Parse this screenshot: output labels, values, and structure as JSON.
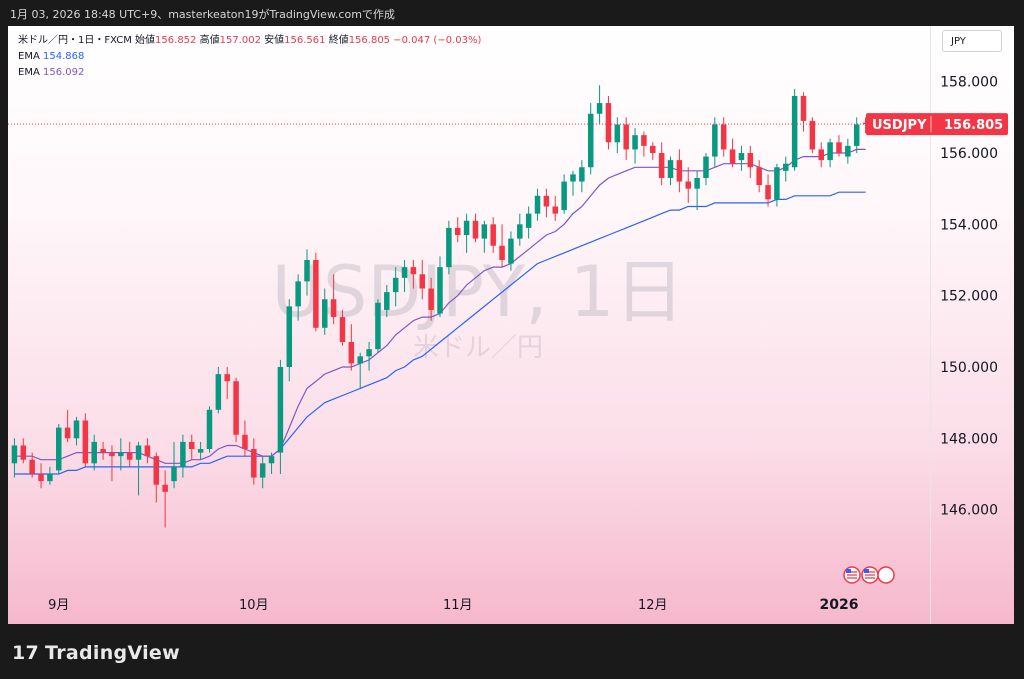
{
  "header": {
    "timestamp": "1月 03, 2026 18:48 UTC+9、masterkeaton19がTradingView.comで作成"
  },
  "legend": {
    "symbol_line": "米ドル／円・1日・FXCM",
    "open_label": "始値",
    "open": "156.852",
    "high_label": "高値",
    "high": "157.002",
    "low_label": "安値",
    "low": "156.561",
    "close_label": "終値",
    "close": "156.805",
    "change": "−0.047 (−0.03%)",
    "ema1_label": "EMA",
    "ema1_value": "154.868",
    "ema2_label": "EMA",
    "ema2_value": "156.092"
  },
  "currency_selector": "JPY",
  "watermark": {
    "main": "USDJPY, 1日",
    "sub": "米ドル／円"
  },
  "price_tag": {
    "symbol": "USDJPY",
    "value": "156.805"
  },
  "brand": "TradingView",
  "colors": {
    "up": "#089981",
    "down": "#f23645",
    "ema_fast": "#7e57c2",
    "ema_slow": "#2962ff",
    "tag": "#f23645"
  },
  "chart_data": {
    "type": "candlestick",
    "symbol": "USDJPY",
    "ylim": [
      144.0,
      159.0
    ],
    "y_ticks": [
      "158.000",
      "156.000",
      "154.000",
      "152.000",
      "150.000",
      "148.000",
      "146.000"
    ],
    "x_ticks": [
      {
        "label": "9月",
        "index": 5
      },
      {
        "label": "10月",
        "index": 27
      },
      {
        "label": "11月",
        "index": 50
      },
      {
        "label": "12月",
        "index": 72
      },
      {
        "label": "2026",
        "index": 93
      }
    ],
    "candles": [
      [
        147.3,
        148.0,
        146.9,
        147.8
      ],
      [
        147.8,
        148.0,
        147.3,
        147.4
      ],
      [
        147.4,
        147.6,
        146.9,
        147.0
      ],
      [
        147.0,
        147.3,
        146.6,
        146.8
      ],
      [
        146.8,
        147.2,
        146.7,
        147.0
      ],
      [
        147.1,
        148.4,
        147.0,
        148.3
      ],
      [
        148.3,
        148.8,
        147.9,
        148.0
      ],
      [
        148.0,
        148.6,
        147.8,
        148.5
      ],
      [
        148.5,
        148.7,
        147.2,
        147.3
      ],
      [
        147.3,
        148.1,
        147.1,
        147.9
      ],
      [
        147.7,
        147.9,
        147.4,
        147.6
      ],
      [
        147.6,
        147.8,
        146.8,
        147.5
      ],
      [
        147.5,
        148.0,
        147.1,
        147.6
      ],
      [
        147.6,
        147.9,
        147.2,
        147.4
      ],
      [
        147.4,
        147.9,
        146.4,
        147.8
      ],
      [
        147.8,
        148.0,
        147.3,
        147.5
      ],
      [
        147.5,
        147.6,
        146.2,
        146.7
      ],
      [
        146.7,
        147.1,
        145.5,
        146.5
      ],
      [
        146.8,
        147.9,
        146.6,
        147.2
      ],
      [
        147.2,
        148.1,
        146.9,
        147.9
      ],
      [
        147.9,
        148.1,
        147.4,
        147.7
      ],
      [
        147.6,
        147.9,
        147.4,
        147.7
      ],
      [
        147.7,
        148.9,
        147.6,
        148.8
      ],
      [
        148.8,
        150.0,
        148.7,
        149.8
      ],
      [
        149.8,
        150.0,
        149.1,
        149.6
      ],
      [
        149.6,
        149.7,
        147.9,
        148.1
      ],
      [
        148.1,
        148.5,
        147.5,
        147.7
      ],
      [
        147.7,
        148.0,
        146.7,
        146.9
      ],
      [
        146.9,
        147.5,
        146.6,
        147.3
      ],
      [
        147.3,
        147.6,
        147.0,
        147.5
      ],
      [
        147.6,
        150.2,
        147.0,
        150.0
      ],
      [
        150.0,
        151.9,
        149.6,
        151.7
      ],
      [
        151.7,
        152.6,
        151.3,
        152.4
      ],
      [
        152.4,
        153.3,
        152.0,
        153.0
      ],
      [
        153.0,
        153.2,
        151.0,
        151.1
      ],
      [
        151.1,
        152.2,
        150.9,
        151.9
      ],
      [
        151.9,
        152.6,
        151.2,
        151.4
      ],
      [
        151.4,
        151.6,
        150.6,
        150.7
      ],
      [
        150.7,
        151.2,
        149.9,
        150.1
      ],
      [
        150.1,
        150.4,
        149.4,
        150.3
      ],
      [
        150.3,
        150.7,
        149.9,
        150.5
      ],
      [
        150.5,
        151.9,
        150.4,
        151.8
      ],
      [
        151.6,
        152.3,
        151.4,
        152.1
      ],
      [
        152.1,
        152.8,
        151.7,
        152.5
      ],
      [
        152.5,
        153.0,
        152.1,
        152.8
      ],
      [
        152.8,
        153.0,
        152.2,
        152.6
      ],
      [
        152.6,
        153.0,
        151.9,
        152.2
      ],
      [
        152.2,
        152.5,
        151.3,
        151.6
      ],
      [
        151.5,
        153.1,
        151.4,
        152.8
      ],
      [
        152.8,
        154.1,
        152.6,
        153.9
      ],
      [
        153.9,
        154.2,
        153.5,
        153.7
      ],
      [
        153.7,
        154.3,
        153.2,
        154.1
      ],
      [
        154.1,
        154.3,
        153.5,
        153.6
      ],
      [
        153.6,
        154.1,
        153.2,
        154.0
      ],
      [
        154.0,
        154.2,
        153.2,
        153.4
      ],
      [
        153.4,
        154.0,
        152.8,
        153.0
      ],
      [
        152.9,
        153.8,
        152.7,
        153.6
      ],
      [
        153.6,
        154.3,
        153.4,
        154.0
      ],
      [
        153.9,
        154.5,
        153.6,
        154.3
      ],
      [
        154.3,
        155.0,
        154.1,
        154.8
      ],
      [
        154.8,
        155.0,
        154.2,
        154.5
      ],
      [
        154.5,
        154.8,
        154.1,
        154.3
      ],
      [
        154.4,
        155.4,
        154.3,
        155.2
      ],
      [
        155.2,
        155.5,
        154.8,
        155.4
      ],
      [
        155.2,
        155.8,
        154.9,
        155.6
      ],
      [
        155.6,
        157.4,
        155.4,
        157.1
      ],
      [
        157.1,
        157.9,
        156.8,
        157.4
      ],
      [
        157.4,
        157.6,
        156.1,
        156.3
      ],
      [
        156.3,
        157.0,
        156.0,
        156.8
      ],
      [
        156.8,
        157.0,
        155.8,
        156.1
      ],
      [
        156.1,
        156.7,
        155.7,
        156.5
      ],
      [
        156.5,
        156.6,
        155.9,
        156.2
      ],
      [
        156.2,
        156.3,
        155.8,
        156.0
      ],
      [
        156.0,
        156.3,
        155.1,
        155.3
      ],
      [
        155.3,
        155.9,
        155.1,
        155.8
      ],
      [
        155.8,
        156.1,
        154.9,
        155.2
      ],
      [
        155.2,
        155.6,
        154.6,
        155.0
      ],
      [
        155.0,
        155.5,
        154.4,
        155.3
      ],
      [
        155.3,
        156.0,
        155.1,
        155.9
      ],
      [
        155.9,
        157.0,
        155.6,
        156.8
      ],
      [
        156.8,
        157.0,
        155.9,
        156.1
      ],
      [
        156.1,
        156.4,
        155.6,
        155.7
      ],
      [
        155.8,
        156.2,
        155.5,
        156.0
      ],
      [
        156.0,
        156.2,
        155.3,
        155.6
      ],
      [
        155.6,
        155.8,
        154.9,
        155.1
      ],
      [
        155.1,
        155.4,
        154.5,
        154.7
      ],
      [
        154.7,
        155.7,
        154.5,
        155.6
      ],
      [
        155.5,
        155.9,
        155.2,
        155.7
      ],
      [
        155.6,
        157.8,
        155.5,
        157.6
      ],
      [
        157.6,
        157.7,
        156.6,
        156.9
      ],
      [
        156.9,
        157.0,
        156.0,
        156.1
      ],
      [
        156.1,
        156.3,
        155.6,
        155.8
      ],
      [
        155.8,
        156.4,
        155.6,
        156.3
      ],
      [
        156.3,
        156.5,
        155.9,
        156.0
      ],
      [
        155.9,
        156.4,
        155.7,
        156.2
      ],
      [
        156.2,
        157.0,
        156.0,
        156.8
      ],
      [
        156.85,
        157.0,
        156.56,
        156.81
      ]
    ],
    "ema_fast": [
      147.5,
      147.5,
      147.5,
      147.4,
      147.4,
      147.4,
      147.5,
      147.6,
      147.6,
      147.6,
      147.6,
      147.6,
      147.6,
      147.6,
      147.6,
      147.5,
      147.4,
      147.3,
      147.3,
      147.3,
      147.4,
      147.4,
      147.5,
      147.7,
      147.8,
      147.8,
      147.7,
      147.6,
      147.5,
      147.5,
      147.7,
      148.3,
      148.9,
      149.4,
      149.6,
      149.8,
      149.9,
      150.0,
      150.0,
      150.1,
      150.2,
      150.4,
      150.6,
      150.9,
      151.1,
      151.3,
      151.4,
      151.4,
      151.5,
      151.8,
      152.0,
      152.3,
      152.5,
      152.7,
      152.8,
      152.8,
      152.9,
      153.1,
      153.3,
      153.5,
      153.7,
      153.8,
      154.0,
      154.3,
      154.5,
      154.8,
      155.1,
      155.3,
      155.4,
      155.5,
      155.6,
      155.6,
      155.6,
      155.6,
      155.6,
      155.5,
      155.5,
      155.5,
      155.5,
      155.6,
      155.7,
      155.7,
      155.7,
      155.7,
      155.6,
      155.5,
      155.5,
      155.6,
      155.8,
      155.9,
      155.9,
      155.9,
      156.0,
      156.0,
      156.0,
      156.1,
      156.1
    ],
    "ema_slow": [
      147.0,
      147.0,
      147.0,
      147.0,
      147.0,
      147.0,
      147.1,
      147.1,
      147.2,
      147.2,
      147.2,
      147.2,
      147.2,
      147.2,
      147.2,
      147.2,
      147.2,
      147.2,
      147.2,
      147.2,
      147.2,
      147.3,
      147.3,
      147.4,
      147.5,
      147.5,
      147.5,
      147.5,
      147.5,
      147.5,
      147.7,
      148.0,
      148.3,
      148.6,
      148.8,
      149.0,
      149.1,
      149.2,
      149.3,
      149.4,
      149.5,
      149.6,
      149.7,
      149.9,
      150.0,
      150.2,
      150.3,
      150.5,
      150.7,
      150.9,
      151.1,
      151.3,
      151.5,
      151.7,
      151.9,
      152.1,
      152.3,
      152.5,
      152.7,
      152.9,
      153.0,
      153.1,
      153.2,
      153.3,
      153.4,
      153.5,
      153.6,
      153.7,
      153.8,
      153.9,
      154.0,
      154.1,
      154.2,
      154.3,
      154.4,
      154.4,
      154.5,
      154.5,
      154.5,
      154.6,
      154.6,
      154.6,
      154.6,
      154.6,
      154.6,
      154.6,
      154.7,
      154.7,
      154.8,
      154.8,
      154.8,
      154.8,
      154.8,
      154.9,
      154.9,
      154.9,
      154.9
    ]
  }
}
